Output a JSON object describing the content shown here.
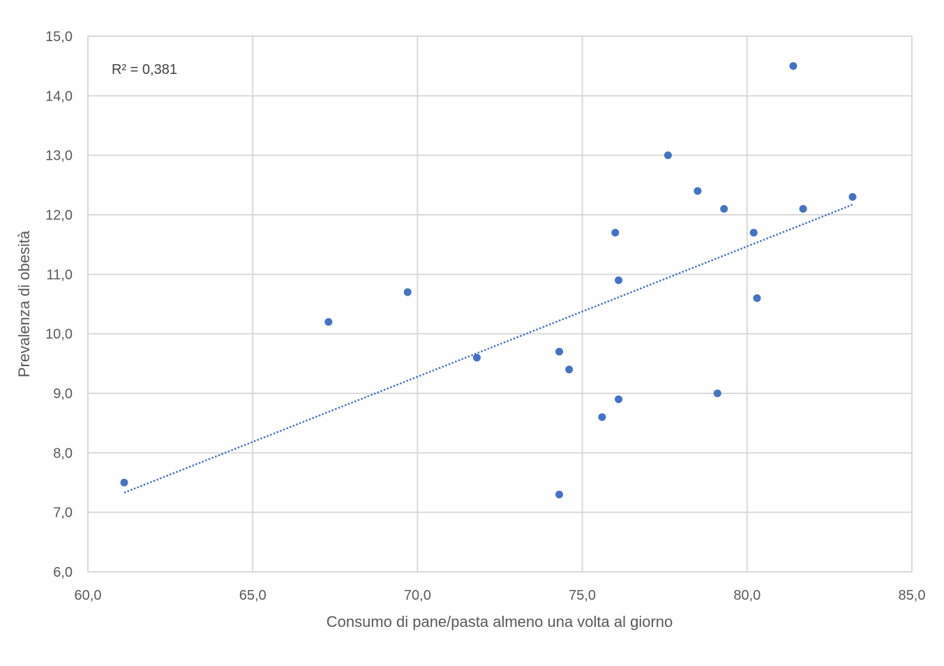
{
  "chart_data": {
    "type": "scatter",
    "xlabel": "Consumo di pane/pasta almeno una volta al giorno",
    "ylabel": "Prevalenza di obesità",
    "xlim": [
      60,
      85
    ],
    "ylim": [
      6,
      15
    ],
    "x_ticks": [
      "60,0",
      "65,0",
      "70,0",
      "75,0",
      "80,0",
      "85,0"
    ],
    "y_ticks": [
      "6,0",
      "7,0",
      "8,0",
      "9,0",
      "10,0",
      "11,0",
      "12,0",
      "13,0",
      "14,0",
      "15,0"
    ],
    "grid": true,
    "annotation": "R² = 0,381",
    "point_color": "#4472c4",
    "trendline": {
      "style": "dotted",
      "x": [
        61.1,
        83.2
      ],
      "y": [
        7.33,
        12.17
      ]
    },
    "points": [
      {
        "x": 61.1,
        "y": 7.5
      },
      {
        "x": 67.3,
        "y": 10.2
      },
      {
        "x": 69.7,
        "y": 10.7
      },
      {
        "x": 71.8,
        "y": 9.6
      },
      {
        "x": 74.3,
        "y": 9.7
      },
      {
        "x": 74.3,
        "y": 7.3
      },
      {
        "x": 74.6,
        "y": 9.4
      },
      {
        "x": 75.6,
        "y": 8.6
      },
      {
        "x": 76.0,
        "y": 11.7
      },
      {
        "x": 76.1,
        "y": 10.9
      },
      {
        "x": 76.1,
        "y": 8.9
      },
      {
        "x": 77.6,
        "y": 13.0
      },
      {
        "x": 78.5,
        "y": 12.4
      },
      {
        "x": 79.1,
        "y": 9.0
      },
      {
        "x": 79.3,
        "y": 12.1
      },
      {
        "x": 80.2,
        "y": 11.7
      },
      {
        "x": 80.3,
        "y": 10.6
      },
      {
        "x": 81.4,
        "y": 14.5
      },
      {
        "x": 81.7,
        "y": 12.1
      },
      {
        "x": 83.2,
        "y": 12.3
      }
    ]
  }
}
